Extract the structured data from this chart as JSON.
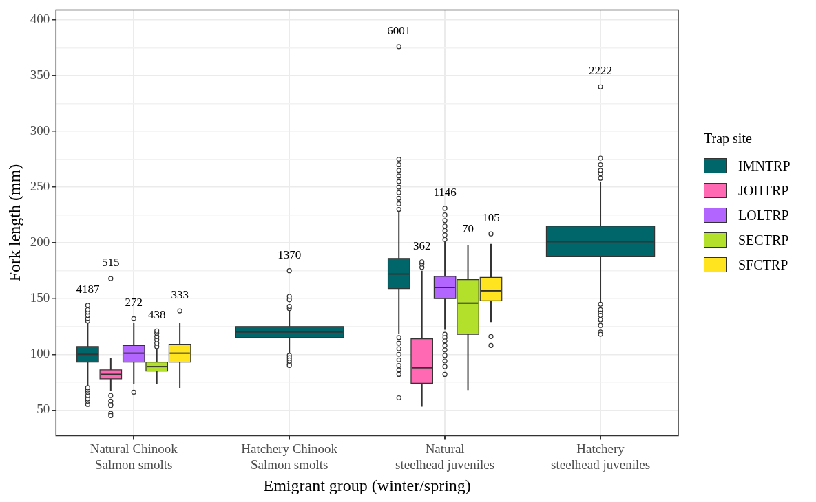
{
  "chart_data": {
    "type": "box",
    "xlabel": "Emigrant group (winter/spring)",
    "ylabel": "Fork length (mm)",
    "legend_title": "Trap site",
    "legend": "right",
    "grid": true,
    "categories": [
      "Natural Chinook\nSalmon smolts",
      "Hatchery Chinook\nSalmon smolts",
      "Natural\nsteelhead juveniles",
      "Hatchery\nsteelhead juveniles"
    ],
    "ylim": [
      27,
      409
    ],
    "yticks": [
      50,
      {
        "value": 75,
        "label": null
      },
      100,
      {
        "value": 125,
        "label": null
      },
      150,
      {
        "value": 175,
        "label": null
      },
      200,
      {
        "value": 225,
        "label": null
      },
      250,
      {
        "value": 275,
        "label": null
      },
      300,
      {
        "value": 325,
        "label": null
      },
      350,
      {
        "value": 375,
        "label": null
      },
      400
    ],
    "series": [
      {
        "name": "IMNTRP",
        "color": "#00666a",
        "value_labels": [
          "4187",
          "1370",
          "6001",
          "2222"
        ],
        "boxes": [
          {
            "low": 72,
            "q1": 93,
            "median": 100,
            "q3": 107,
            "high": 128,
            "outliers": [
              130,
              132,
              135,
              138,
              140,
              144,
              55,
              58,
              60,
              63,
              66,
              68,
              70
            ]
          },
          {
            "low": 101,
            "q1": 115,
            "median": 120,
            "q3": 125,
            "high": 140,
            "outliers": [
              141,
              143,
              149,
              152,
              175,
              99,
              97,
              95,
              93,
              91,
              90
            ]
          },
          {
            "low": 118,
            "q1": 159,
            "median": 172,
            "q3": 186,
            "high": 228,
            "outliers": [
              230,
              235,
              240,
              245,
              250,
              255,
              260,
              265,
              270,
              275,
              376,
              115,
              110,
              105,
              100,
              95,
              90,
              86,
              82,
              61
            ]
          },
          {
            "low": 147,
            "q1": 188,
            "median": 201,
            "q3": 215,
            "high": 255,
            "outliers": [
              258,
              262,
              265,
              270,
              276,
              340,
              145,
              140,
              137,
              135,
              131,
              126,
              120,
              118
            ]
          }
        ]
      },
      {
        "name": "JOHTRP",
        "color": "#ff69b4",
        "value_labels": [
          "515",
          null,
          "362",
          null
        ],
        "boxes": [
          {
            "low": 67,
            "q1": 78,
            "median": 82,
            "q3": 86,
            "high": 97,
            "outliers": [
              168,
              63,
              58,
              55,
              54,
              47,
              45
            ]
          },
          null,
          {
            "low": 53,
            "q1": 74,
            "median": 88,
            "q3": 114,
            "high": 175,
            "outliers": [
              178,
              181,
              183
            ]
          },
          null
        ]
      },
      {
        "name": "LOLTRP",
        "color": "#b266ff",
        "value_labels": [
          "272",
          null,
          "1146",
          null
        ],
        "boxes": [
          {
            "low": 73,
            "q1": 93,
            "median": 101,
            "q3": 108,
            "high": 128,
            "outliers": [
              132,
              66
            ]
          },
          null,
          {
            "low": 122,
            "q1": 150,
            "median": 160,
            "q3": 170,
            "high": 201,
            "outliers": [
              203,
              207,
              211,
              215,
              220,
              225,
              231,
              118,
              115,
              112,
              108,
              104,
              99,
              94,
              89,
              82
            ]
          },
          null
        ]
      },
      {
        "name": "SECTRP",
        "color": "#b2e02b",
        "value_labels": [
          "438",
          null,
          "70",
          null
        ],
        "boxes": [
          {
            "low": 73,
            "q1": 85,
            "median": 89,
            "q3": 93,
            "high": 105,
            "outliers": [
              107,
              110,
              113,
              116,
              119,
              121
            ]
          },
          null,
          {
            "low": 68,
            "q1": 118,
            "median": 146,
            "q3": 167,
            "high": 198
          },
          null
        ]
      },
      {
        "name": "SFCTRP",
        "color": "#ffe41f",
        "value_labels": [
          "333",
          null,
          "105",
          null
        ],
        "boxes": [
          {
            "low": 70,
            "q1": 93,
            "median": 101,
            "q3": 109,
            "high": 128,
            "outliers": [
              139
            ]
          },
          null,
          {
            "low": 129,
            "q1": 148,
            "median": 157,
            "q3": 169,
            "high": 199,
            "outliers": [
              208,
              116,
              108
            ]
          },
          null
        ]
      }
    ]
  }
}
